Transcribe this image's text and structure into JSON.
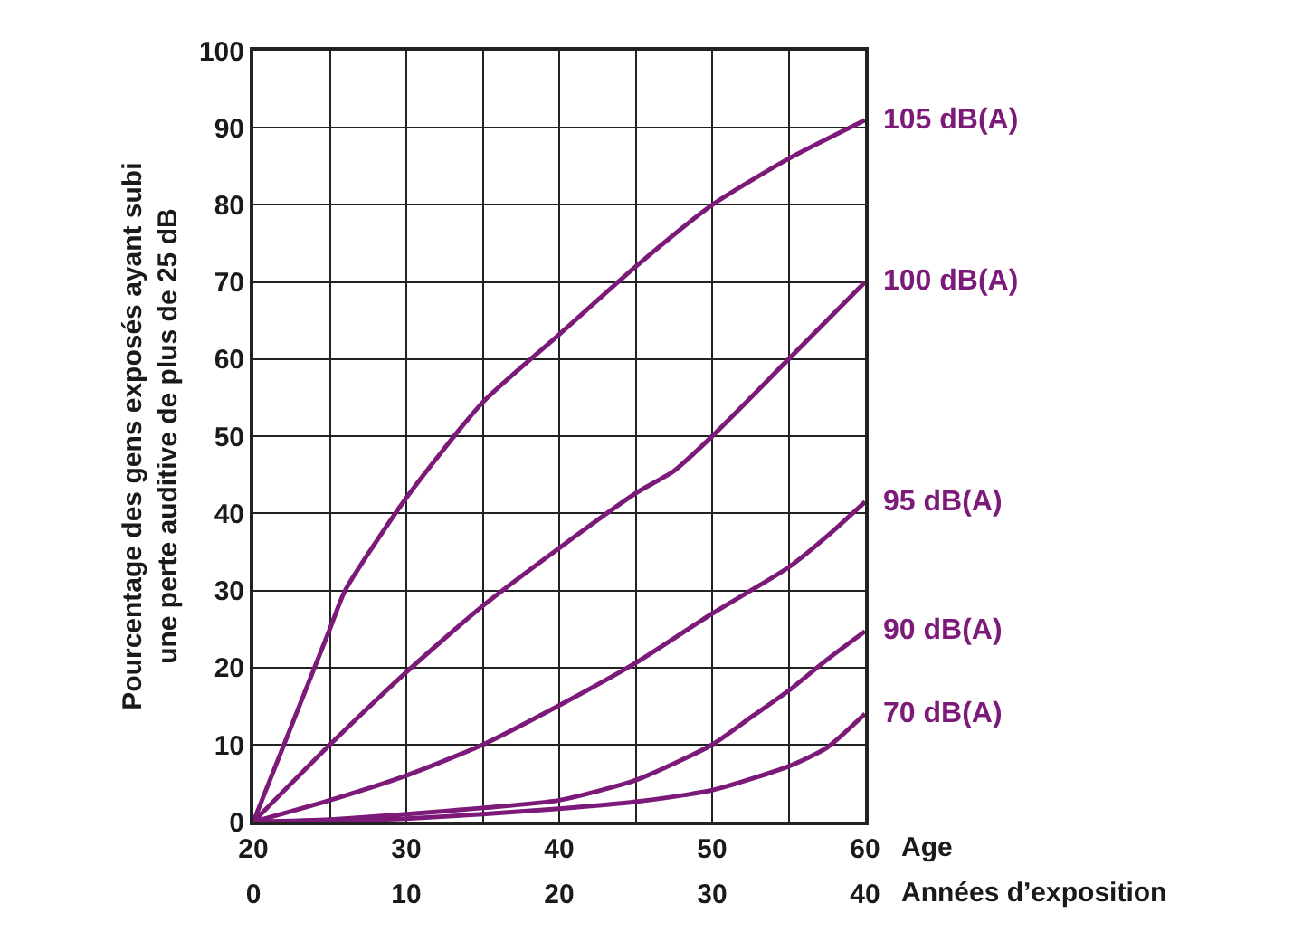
{
  "chart_data": {
    "type": "line",
    "ylabel": "Pourcentage des gens exposés ayant subi\nune perte auditive de plus de 25 dB",
    "xlabel": "Age",
    "x2label": "Années d’exposition",
    "x": [
      20,
      25,
      26,
      30,
      35,
      40,
      45,
      47.5,
      50,
      52.5,
      55,
      57.5,
      60
    ],
    "series": [
      {
        "name": "105 dB(A)",
        "color": "#7b1a78",
        "values": [
          0,
          25,
          30,
          42,
          54.4,
          63.2,
          72,
          null,
          80,
          null,
          86,
          null,
          91
        ]
      },
      {
        "name": "100 dB(A)",
        "color": "#7b1a78",
        "values": [
          0,
          10,
          null,
          19.4,
          28,
          35.5,
          42.6,
          45.5,
          50,
          null,
          60,
          null,
          70
        ]
      },
      {
        "name": "95 dB(A)",
        "color": "#7b1a78",
        "values": [
          0,
          2.8,
          null,
          6,
          10,
          15.1,
          20.6,
          null,
          27,
          null,
          33,
          37,
          41.5
        ]
      },
      {
        "name": "90 dB(A)",
        "color": "#7b1a78",
        "values": [
          0,
          0.3,
          null,
          1,
          1.8,
          2.8,
          5.4,
          null,
          10,
          13.5,
          17,
          21,
          24.7
        ]
      },
      {
        "name": "70 dB(A)",
        "color": "#7b1a78",
        "values": [
          0,
          0.1,
          null,
          0.4,
          1,
          1.7,
          2.6,
          null,
          4.1,
          null,
          7.2,
          9.6,
          14
        ]
      }
    ],
    "xlim": [
      20,
      60
    ],
    "xticks": [
      20,
      {
        "value": 25,
        "label": null
      },
      30,
      {
        "value": 35,
        "label": null
      },
      40,
      {
        "value": 45,
        "label": null
      },
      50,
      {
        "value": 55,
        "label": null
      },
      60
    ],
    "x2lim": [
      0,
      40
    ],
    "x2ticks": [
      0,
      10,
      20,
      30,
      40
    ],
    "ylim": [
      0,
      100
    ],
    "yticks": [
      0,
      10,
      20,
      30,
      40,
      50,
      60,
      70,
      80,
      90,
      100
    ],
    "grid": true,
    "legend": false,
    "marker": "none",
    "line_style": "solid"
  }
}
